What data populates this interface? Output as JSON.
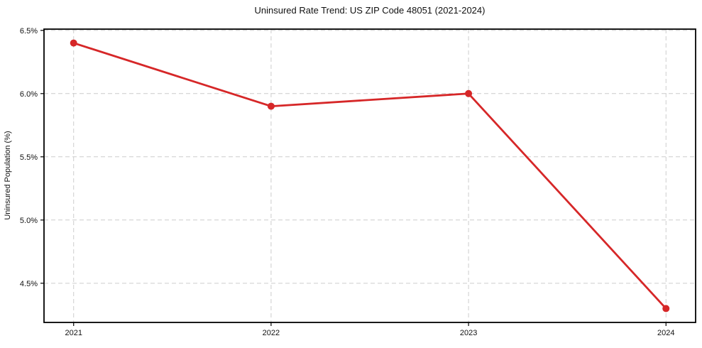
{
  "chart_data": {
    "type": "line",
    "title": "Uninsured Rate Trend: US ZIP Code 48051 (2021-2024)",
    "xlabel": "",
    "ylabel": "Uninsured Population (%)",
    "x": [
      2021,
      2022,
      2023,
      2024
    ],
    "x_tick_labels": [
      "2021",
      "2022",
      "2023",
      "2024"
    ],
    "values": [
      6.4,
      5.9,
      6.0,
      4.3
    ],
    "y_ticks": [
      4.5,
      5.0,
      5.5,
      6.0,
      6.5
    ],
    "y_tick_labels": [
      "4.5%",
      "5.0%",
      "5.5%",
      "6.0%",
      "6.5%"
    ],
    "xlim": [
      2020.85,
      2024.15
    ],
    "ylim": [
      4.19,
      6.51
    ],
    "grid": "dashed, both axes",
    "legend": "none",
    "marker": "circle",
    "colors": {
      "line": "#d62728",
      "marker": "#d62728",
      "grid": "#cccccc",
      "axis": "#000000",
      "text": "#111111",
      "background": "#ffffff"
    }
  }
}
